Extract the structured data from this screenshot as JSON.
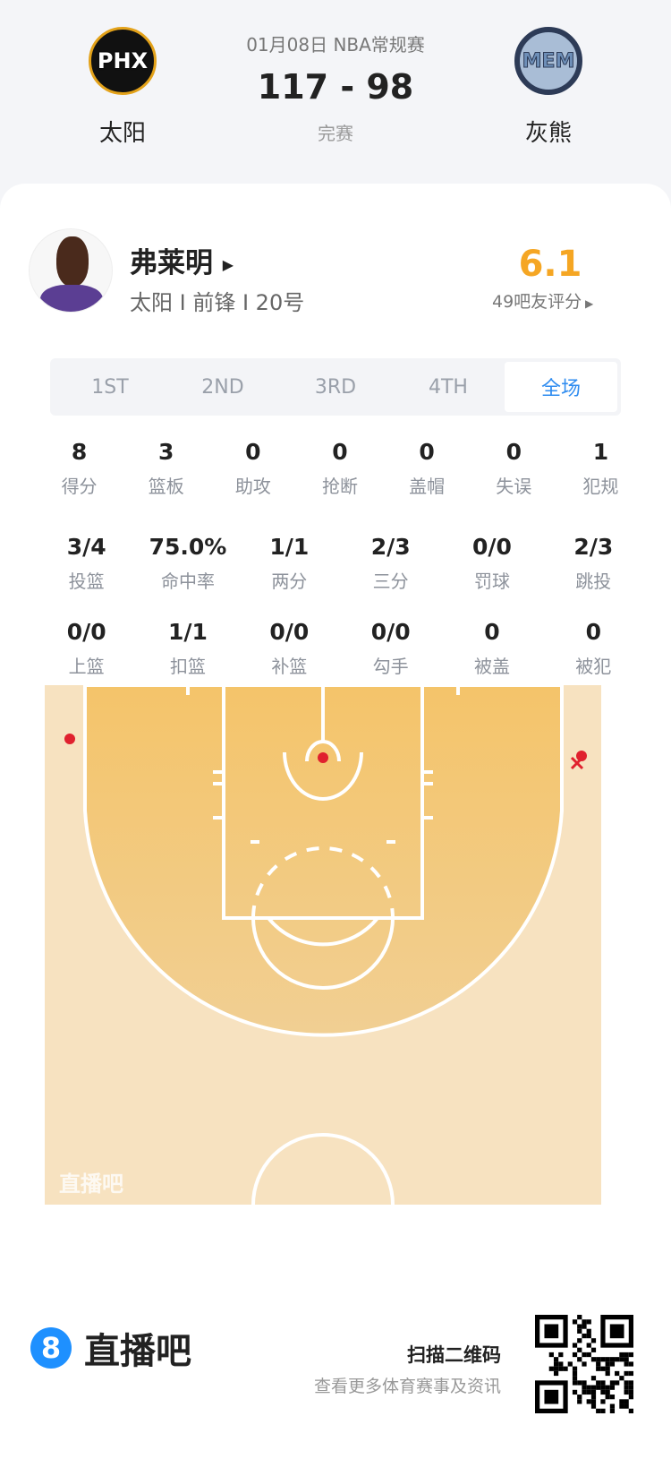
{
  "game": {
    "date_league": "01月08日 NBA常规赛",
    "score": "117 - 98",
    "status": "完赛",
    "home": {
      "abbr": "PHX",
      "name": "太阳"
    },
    "away": {
      "abbr": "MEM",
      "name": "灰熊"
    }
  },
  "player": {
    "name": "弗莱明",
    "info": "太阳 I 前锋 I 20号",
    "rating": "6.1",
    "rating_label": "49吧友评分",
    "rating_color": "#f5a623"
  },
  "tabs": [
    {
      "label": "1ST"
    },
    {
      "label": "2ND"
    },
    {
      "label": "3RD"
    },
    {
      "label": "4TH"
    },
    {
      "label": "全场",
      "active": true
    }
  ],
  "stats_rows": [
    [
      {
        "v": "8",
        "l": "得分"
      },
      {
        "v": "3",
        "l": "篮板"
      },
      {
        "v": "0",
        "l": "助攻"
      },
      {
        "v": "0",
        "l": "抢断"
      },
      {
        "v": "0",
        "l": "盖帽"
      },
      {
        "v": "0",
        "l": "失误"
      },
      {
        "v": "1",
        "l": "犯规"
      }
    ],
    [
      {
        "v": "3/4",
        "l": "投篮"
      },
      {
        "v": "75.0%",
        "l": "命中率"
      },
      {
        "v": "1/1",
        "l": "两分"
      },
      {
        "v": "2/3",
        "l": "三分"
      },
      {
        "v": "0/0",
        "l": "罚球"
      },
      {
        "v": "2/3",
        "l": "跳投"
      }
    ],
    [
      {
        "v": "0/0",
        "l": "上篮"
      },
      {
        "v": "1/1",
        "l": "扣篮"
      },
      {
        "v": "0/0",
        "l": "补篮"
      },
      {
        "v": "0/0",
        "l": "勾手"
      },
      {
        "v": "0",
        "l": "被盖"
      },
      {
        "v": "0",
        "l": "被犯"
      }
    ]
  ],
  "court": {
    "watermark": "直播吧",
    "shots": [
      {
        "result": "made"
      },
      {
        "result": "made"
      },
      {
        "result": "made"
      },
      {
        "result": "missed"
      }
    ],
    "shot_color": "#e0212e"
  },
  "footer": {
    "brand": "直播吧",
    "brand_badge": "8",
    "scan_title": "扫描二维码",
    "scan_sub": "查看更多体育赛事及资讯",
    "accent": "#1e90ff"
  }
}
